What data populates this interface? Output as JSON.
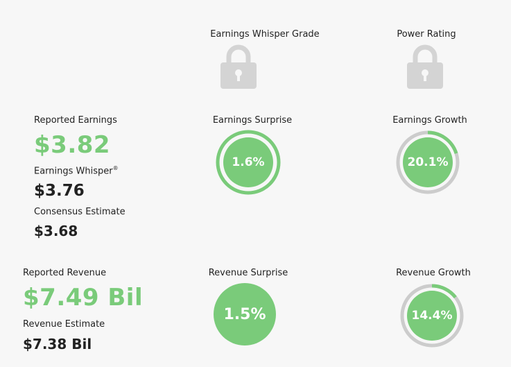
{
  "grades": {
    "whisper_grade_label": "Earnings Whisper Grade",
    "power_rating_label": "Power Rating",
    "lock_icon_color": "#d4d4d4"
  },
  "earnings": {
    "reported_label": "Reported Earnings",
    "reported_value": "$3.82",
    "whisper_label": "Earnings Whisper",
    "whisper_mark": "®",
    "whisper_value": "$3.76",
    "consensus_label": "Consensus Estimate",
    "consensus_value": "$3.68",
    "surprise_label": "Earnings Surprise",
    "surprise_value": "1.6%",
    "surprise_fraction": 1.0,
    "growth_label": "Earnings Growth",
    "growth_value": "20.1%",
    "growth_fraction": 0.201
  },
  "revenue": {
    "reported_label": "Reported Revenue",
    "reported_value": "$7.49 Bil",
    "estimate_label": "Revenue Estimate",
    "estimate_value": "$7.38 Bil",
    "surprise_label": "Revenue Surprise",
    "surprise_value": "1.5%",
    "growth_label": "Revenue Growth",
    "growth_value": "14.4%",
    "growth_fraction": 0.144
  },
  "colors": {
    "green": "#7acb7a",
    "gray_ring": "#cccccc",
    "background": "#f7f7f7"
  }
}
